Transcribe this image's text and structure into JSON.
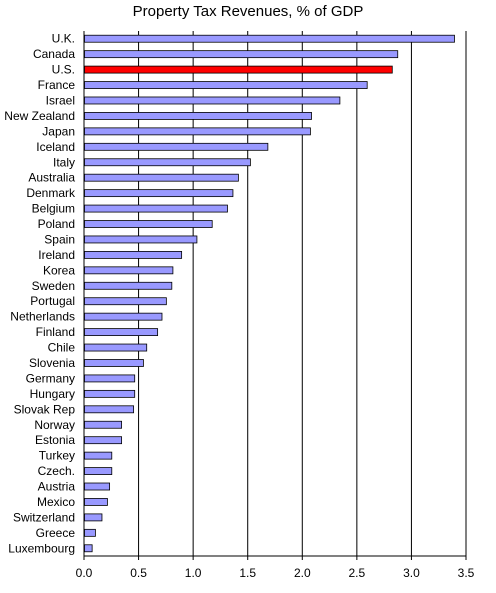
{
  "chart_data": {
    "type": "bar",
    "orientation": "horizontal",
    "title": "Property Tax Revenues, % of GDP",
    "xlabel": "",
    "ylabel": "",
    "xlim": [
      0,
      3.5
    ],
    "x_ticks": [
      "0.0",
      "0.5",
      "1.0",
      "1.5",
      "2.0",
      "2.5",
      "3.0",
      "3.5"
    ],
    "grid": "vertical",
    "legend": "none",
    "categories": [
      "U.K.",
      "Canada",
      "U.S.",
      "France",
      "Israel",
      "New Zealand",
      "Japan",
      "Iceland",
      "Italy",
      "Australia",
      "Denmark",
      "Belgium",
      "Poland",
      "Spain",
      "Ireland",
      "Korea",
      "Sweden",
      "Portugal",
      "Netherlands",
      "Finland",
      "Chile",
      "Slovenia",
      "Germany",
      "Hungary",
      "Slovak Rep",
      "Norway",
      "Estonia",
      "Turkey",
      "Czech.",
      "Austria",
      "Mexico",
      "Switzerland",
      "Greece",
      "Luxembourg"
    ],
    "values": [
      3.39,
      2.87,
      2.82,
      2.59,
      2.34,
      2.08,
      2.07,
      1.68,
      1.52,
      1.41,
      1.36,
      1.31,
      1.17,
      1.03,
      0.89,
      0.81,
      0.8,
      0.75,
      0.71,
      0.67,
      0.57,
      0.54,
      0.46,
      0.46,
      0.45,
      0.34,
      0.34,
      0.25,
      0.25,
      0.23,
      0.21,
      0.16,
      0.1,
      0.07
    ],
    "colors": {
      "default": "#9999ff",
      "highlight": "#ff0000",
      "highlight_category": "U.S.",
      "border": "#000000",
      "grid": "#000000"
    }
  }
}
